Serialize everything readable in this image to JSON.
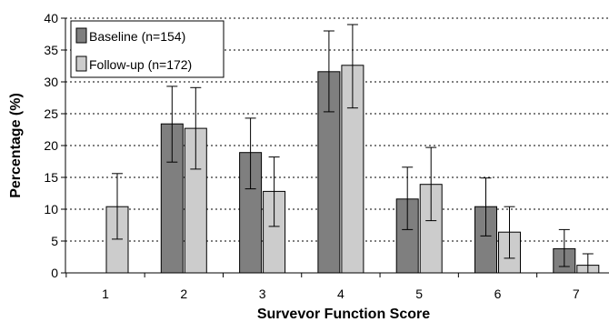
{
  "chart_data": {
    "type": "bar",
    "title": "",
    "xlabel": "Survevor Function Score",
    "ylabel": "Percentage (%)",
    "categories": [
      "1",
      "2",
      "3",
      "4",
      "5",
      "6",
      "7"
    ],
    "ylim": [
      0,
      40
    ],
    "yticks": [
      "0",
      "5",
      "10",
      "15",
      "20",
      "25",
      "30",
      "35",
      "40"
    ],
    "grid": "horizontal dashed",
    "legend_position": "top-left",
    "series": [
      {
        "name": "Baseline (n=154)",
        "color": "#7f7f7f",
        "values": [
          0,
          23.4,
          18.9,
          31.6,
          11.6,
          10.4,
          3.8
        ],
        "error_low": [
          0,
          17.4,
          13.2,
          25.3,
          6.8,
          5.8,
          1.0
        ],
        "error_high": [
          0,
          29.3,
          24.3,
          38.0,
          16.6,
          14.9,
          6.8
        ]
      },
      {
        "name": "Follow-up (n=172)",
        "color": "#cccccc",
        "values": [
          10.4,
          22.7,
          12.8,
          32.6,
          13.9,
          6.4,
          1.2
        ],
        "error_low": [
          5.3,
          16.3,
          7.3,
          25.9,
          8.2,
          2.3,
          0
        ],
        "error_high": [
          15.6,
          29.1,
          18.2,
          39.0,
          19.7,
          10.4,
          3.0
        ]
      }
    ]
  }
}
